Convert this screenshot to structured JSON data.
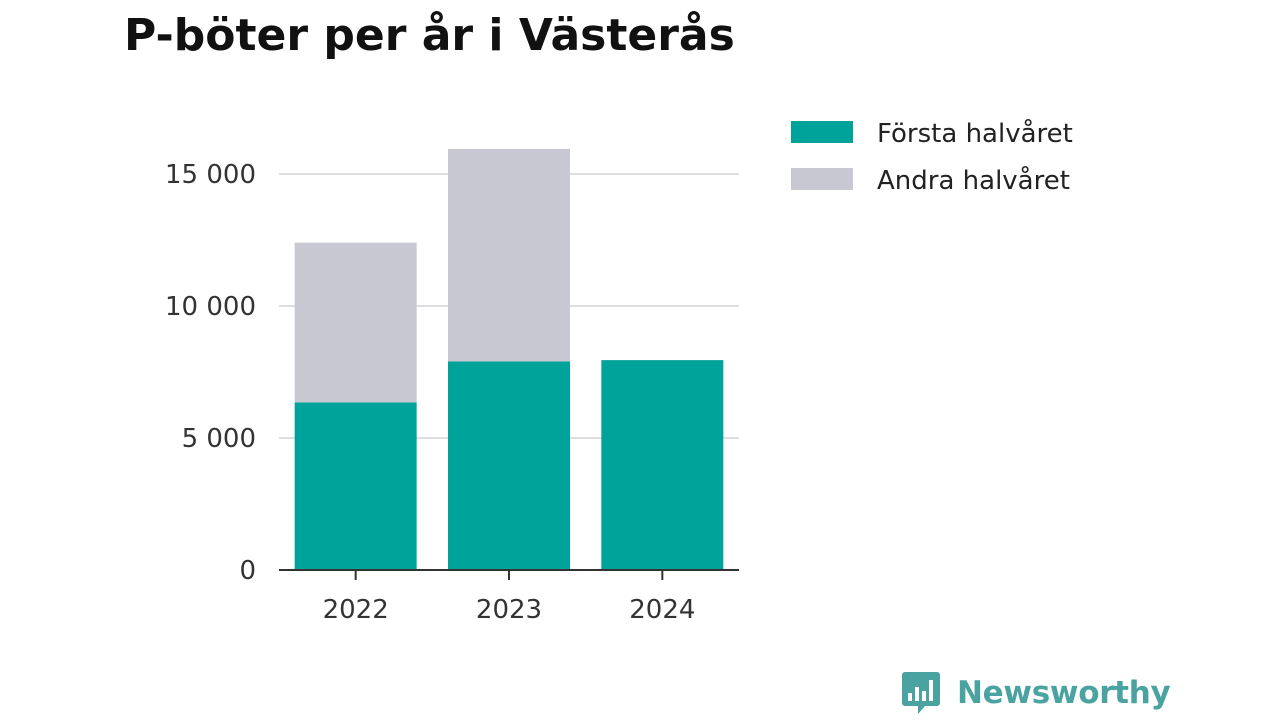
{
  "chart_data": {
    "type": "bar",
    "stacked": true,
    "title": "P-böter per år i Västerås",
    "categories": [
      "2022",
      "2023",
      "2024"
    ],
    "series": [
      {
        "name": "Första halvåret",
        "color": "#00a39a",
        "values": [
          6350,
          7900,
          7950
        ]
      },
      {
        "name": "Andra halvåret",
        "color": "#c8c8d3",
        "values": [
          6050,
          8050,
          0
        ]
      }
    ],
    "yticks": [
      {
        "value": 0,
        "label": "0"
      },
      {
        "value": 5000,
        "label": "5 000"
      },
      {
        "value": 10000,
        "label": "10 000"
      },
      {
        "value": 15000,
        "label": "15 000"
      }
    ],
    "ylim": [
      0,
      16000
    ],
    "xlabel": "",
    "ylabel": "",
    "grid": true,
    "legend_position": "top-right"
  },
  "brand": {
    "name": "Newsworthy",
    "color": "#4aa3a0",
    "icon": "speech-bubble-bar-chart-icon"
  }
}
